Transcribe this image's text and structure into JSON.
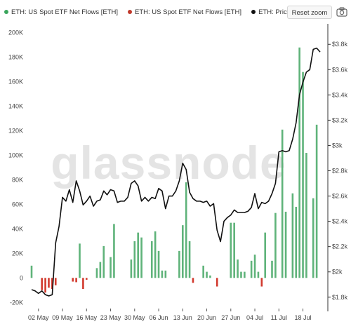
{
  "legend": [
    {
      "label": "ETH: US Spot ETF Net Flows [ETH]",
      "color": "#3aa55c"
    },
    {
      "label": "ETH: US Spot ETF Net Flows [ETH]",
      "color": "#c0392b"
    },
    {
      "label": "ETH: Price [USD]",
      "color": "#111111"
    }
  ],
  "toolbar": {
    "reset_zoom": "Reset zoom"
  },
  "watermark": "glassnode",
  "chart_data": {
    "type": "bar",
    "x_ticks": [
      "02 May",
      "09 May",
      "16 May",
      "23 May",
      "30 May",
      "06 Jun",
      "13 Jun",
      "20 Jun",
      "27 Jun",
      "04 Jul",
      "11 Jul",
      "18 Jul"
    ],
    "y_left_ticks": [
      "200K",
      "180K",
      "160K",
      "140K",
      "120K",
      "100K",
      "80K",
      "60K",
      "40K",
      "20K",
      "0",
      "-20K"
    ],
    "y_left_lim": [
      -25000,
      205000
    ],
    "y_right_ticks": [
      "$3.8k",
      "$3.6k",
      "$3.4k",
      "$3.2k",
      "$3k",
      "$2.8k",
      "$2.6k",
      "$2.4k",
      "$2.2k",
      "$2k",
      "$1.8k"
    ],
    "y_right_lim": [
      1710,
      3940
    ],
    "x_range": [
      "2024-04-30",
      "2024-07-23"
    ],
    "series": [
      {
        "name": "ETH: US Spot ETF Net Flows [ETH]",
        "bars": [
          [
            "2024-04-30",
            10000
          ],
          [
            "2024-05-03",
            -10000
          ],
          [
            "2024-05-04",
            -12000
          ],
          [
            "2024-05-05",
            -8000
          ],
          [
            "2024-05-06",
            -9000
          ],
          [
            "2024-05-07",
            -6000
          ],
          [
            "2024-05-12",
            -3000
          ],
          [
            "2024-05-13",
            -3500
          ],
          [
            "2024-05-14",
            28000
          ],
          [
            "2024-05-15",
            -9000
          ],
          [
            "2024-05-16",
            -1500
          ],
          [
            "2024-05-19",
            8000
          ],
          [
            "2024-05-20",
            13000
          ],
          [
            "2024-05-21",
            26000
          ],
          [
            "2024-05-23",
            17000
          ],
          [
            "2024-05-24",
            44000
          ],
          [
            "2024-05-29",
            15000
          ],
          [
            "2024-05-30",
            30000
          ],
          [
            "2024-05-31",
            37000
          ],
          [
            "2024-06-01",
            33000
          ],
          [
            "2024-06-04",
            30000
          ],
          [
            "2024-06-05",
            38000
          ],
          [
            "2024-06-06",
            22000
          ],
          [
            "2024-06-07",
            6000
          ],
          [
            "2024-06-08",
            6000
          ],
          [
            "2024-06-12",
            22000
          ],
          [
            "2024-06-13",
            43000
          ],
          [
            "2024-06-14",
            78000
          ],
          [
            "2024-06-15",
            30000
          ],
          [
            "2024-06-16",
            -4000
          ],
          [
            "2024-06-19",
            10000
          ],
          [
            "2024-06-20",
            5000
          ],
          [
            "2024-06-21",
            2000
          ],
          [
            "2024-06-23",
            -7000
          ],
          [
            "2024-06-27",
            45000
          ],
          [
            "2024-06-28",
            45000
          ],
          [
            "2024-06-29",
            15000
          ],
          [
            "2024-06-30",
            5000
          ],
          [
            "2024-07-01",
            5000
          ],
          [
            "2024-07-03",
            14000
          ],
          [
            "2024-07-04",
            19000
          ],
          [
            "2024-07-05",
            5000
          ],
          [
            "2024-07-06",
            -7000
          ],
          [
            "2024-07-07",
            37000
          ],
          [
            "2024-07-09",
            14000
          ],
          [
            "2024-07-10",
            53000
          ],
          [
            "2024-07-12",
            121000
          ],
          [
            "2024-07-13",
            54000
          ],
          [
            "2024-07-15",
            69000
          ],
          [
            "2024-07-16",
            58000
          ],
          [
            "2024-07-17",
            188000
          ],
          [
            "2024-07-18",
            168000
          ],
          [
            "2024-07-19",
            102000
          ],
          [
            "2024-07-21",
            65000
          ],
          [
            "2024-07-22",
            125000
          ]
        ]
      },
      {
        "name": "ETH: Price [USD]",
        "points": [
          [
            "2024-04-30",
            1860
          ],
          [
            "2024-05-01",
            1850
          ],
          [
            "2024-05-02",
            1830
          ],
          [
            "2024-05-03",
            1850
          ],
          [
            "2024-05-04",
            1820
          ],
          [
            "2024-05-05",
            1810
          ],
          [
            "2024-05-06",
            1820
          ],
          [
            "2024-05-07",
            2230
          ],
          [
            "2024-05-08",
            2360
          ],
          [
            "2024-05-09",
            2590
          ],
          [
            "2024-05-10",
            2560
          ],
          [
            "2024-05-11",
            2650
          ],
          [
            "2024-05-12",
            2550
          ],
          [
            "2024-05-13",
            2720
          ],
          [
            "2024-05-14",
            2640
          ],
          [
            "2024-05-15",
            2530
          ],
          [
            "2024-05-16",
            2560
          ],
          [
            "2024-05-17",
            2600
          ],
          [
            "2024-05-18",
            2520
          ],
          [
            "2024-05-19",
            2560
          ],
          [
            "2024-05-20",
            2570
          ],
          [
            "2024-05-21",
            2640
          ],
          [
            "2024-05-22",
            2610
          ],
          [
            "2024-05-23",
            2650
          ],
          [
            "2024-05-24",
            2640
          ],
          [
            "2024-05-25",
            2550
          ],
          [
            "2024-05-26",
            2560
          ],
          [
            "2024-05-27",
            2560
          ],
          [
            "2024-05-28",
            2590
          ],
          [
            "2024-05-29",
            2700
          ],
          [
            "2024-05-30",
            2720
          ],
          [
            "2024-05-31",
            2680
          ],
          [
            "2024-06-01",
            2560
          ],
          [
            "2024-06-02",
            2590
          ],
          [
            "2024-06-03",
            2560
          ],
          [
            "2024-06-04",
            2590
          ],
          [
            "2024-06-05",
            2580
          ],
          [
            "2024-06-06",
            2660
          ],
          [
            "2024-06-07",
            2640
          ],
          [
            "2024-06-08",
            2500
          ],
          [
            "2024-06-09",
            2600
          ],
          [
            "2024-06-10",
            2600
          ],
          [
            "2024-06-11",
            2640
          ],
          [
            "2024-06-12",
            2720
          ],
          [
            "2024-06-13",
            2860
          ],
          [
            "2024-06-14",
            2810
          ],
          [
            "2024-06-15",
            2630
          ],
          [
            "2024-06-16",
            2580
          ],
          [
            "2024-06-17",
            2560
          ],
          [
            "2024-06-18",
            2560
          ],
          [
            "2024-06-19",
            2550
          ],
          [
            "2024-06-20",
            2560
          ],
          [
            "2024-06-21",
            2520
          ],
          [
            "2024-06-22",
            2540
          ],
          [
            "2024-06-23",
            2330
          ],
          [
            "2024-06-24",
            2240
          ],
          [
            "2024-06-25",
            2400
          ],
          [
            "2024-06-26",
            2430
          ],
          [
            "2024-06-27",
            2450
          ],
          [
            "2024-06-28",
            2490
          ],
          [
            "2024-06-29",
            2470
          ],
          [
            "2024-06-30",
            2470
          ],
          [
            "2024-07-01",
            2470
          ],
          [
            "2024-07-02",
            2480
          ],
          [
            "2024-07-03",
            2510
          ],
          [
            "2024-07-04",
            2620
          ],
          [
            "2024-07-05",
            2500
          ],
          [
            "2024-07-06",
            2550
          ],
          [
            "2024-07-07",
            2540
          ],
          [
            "2024-07-08",
            2560
          ],
          [
            "2024-07-09",
            2620
          ],
          [
            "2024-07-10",
            2700
          ],
          [
            "2024-07-11",
            2950
          ],
          [
            "2024-07-12",
            2960
          ],
          [
            "2024-07-13",
            2950
          ],
          [
            "2024-07-14",
            2960
          ],
          [
            "2024-07-15",
            3050
          ],
          [
            "2024-07-16",
            3180
          ],
          [
            "2024-07-17",
            3400
          ],
          [
            "2024-07-18",
            3500
          ],
          [
            "2024-07-19",
            3580
          ],
          [
            "2024-07-20",
            3600
          ],
          [
            "2024-07-21",
            3760
          ],
          [
            "2024-07-22",
            3770
          ],
          [
            "2024-07-23",
            3740
          ]
        ]
      }
    ],
    "legend_position": "top-left",
    "grid": false
  }
}
